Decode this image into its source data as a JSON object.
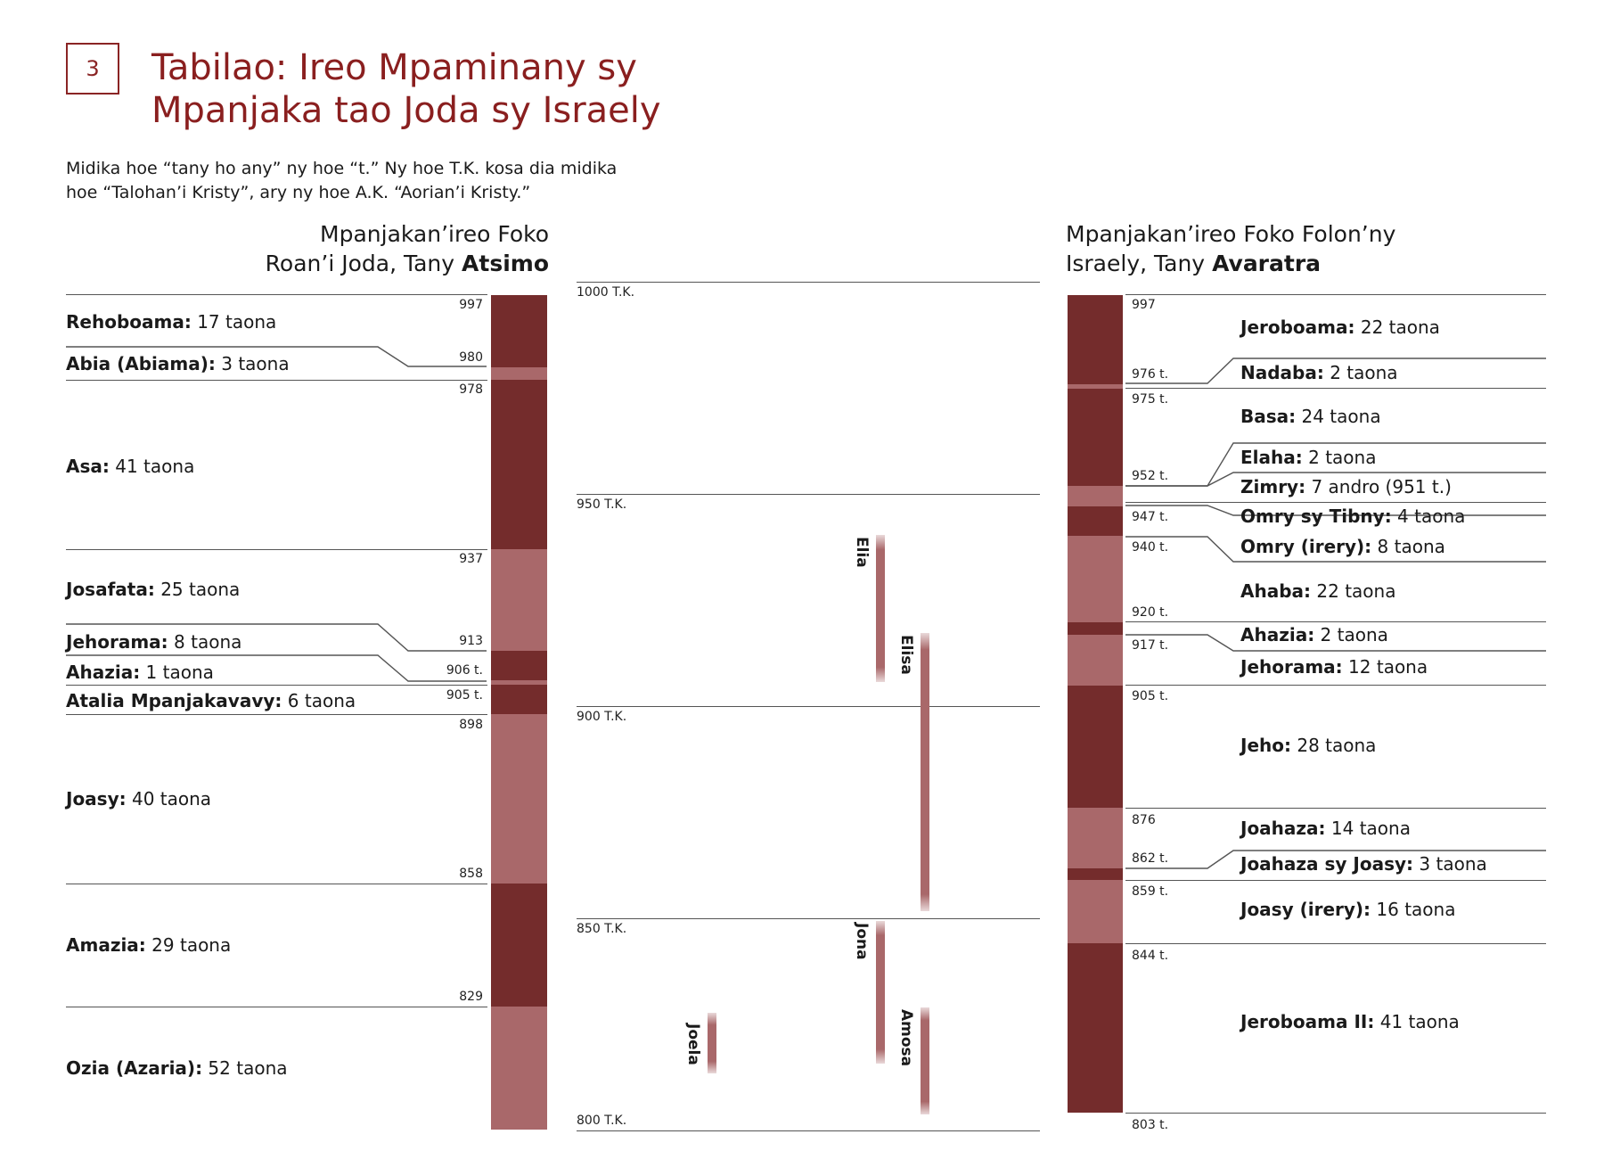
{
  "header": {
    "badge": "3",
    "title_line1": "Tabilao: Ireo Mpaminany sy",
    "title_line2": "Mpanjaka tao Joda sy Israely",
    "note_line1": "Midika hoe “tany ho any” ny hoe “t.” Ny hoe T.K. kosa dia midika",
    "note_line2": "hoe “Talohan’i Kristy”, ary ny hoe A.K. “Aorian’i Kristy.”"
  },
  "colors": {
    "dark": "#742c2c",
    "light": "#a9686a",
    "accent": "#8a1f1f"
  },
  "south": {
    "heading_line1": "Mpanjakan’ireo Foko",
    "heading_line2_plain": "Roan’i Joda, Tany ",
    "heading_line2_bold": "Atsimo",
    "years": [
      "997",
      "980",
      "978",
      "937",
      "913",
      "906 t.",
      "905 t.",
      "898",
      "858",
      "829"
    ],
    "kings": [
      {
        "name": "Rehoboama:",
        "reign": " 17 taona"
      },
      {
        "name": "Abia (Abiama):",
        "reign": " 3 taona"
      },
      {
        "name": "Asa:",
        "reign": " 41 taona"
      },
      {
        "name": "Josafata:",
        "reign": " 25 taona"
      },
      {
        "name": "Jehorama:",
        "reign": " 8 taona"
      },
      {
        "name": "Ahazia:",
        "reign": " 1 taona"
      },
      {
        "name": "Atalia Mpanjakavavy:",
        "reign": " 6 taona"
      },
      {
        "name": "Joasy:",
        "reign": " 40 taona"
      },
      {
        "name": "Amazia:",
        "reign": " 29 taona"
      },
      {
        "name": "Ozia (Azaria):",
        "reign": " 52 taona"
      }
    ]
  },
  "timeline": {
    "labels": [
      "1000 T.K.",
      "950 T.K.",
      "900 T.K.",
      "850 T.K.",
      "800 T.K."
    ],
    "prophets": [
      {
        "name": "Elia"
      },
      {
        "name": "Elisa"
      },
      {
        "name": "Jona"
      },
      {
        "name": "Amosa"
      },
      {
        "name": "Joela"
      }
    ]
  },
  "north": {
    "heading_line1": "Mpanjakan’ireo Foko Folon’ny",
    "heading_line2_plain": "Israely, Tany ",
    "heading_line2_bold": "Avaratra",
    "years": [
      "997",
      "976 t.",
      "975 t.",
      "952 t.",
      "947 t.",
      "940 t.",
      "920 t.",
      "917 t.",
      "905 t.",
      "876",
      "862 t.",
      "859 t.",
      "844 t.",
      "803 t."
    ],
    "kings": [
      {
        "name": "Jeroboama:",
        "reign": " 22 taona"
      },
      {
        "name": "Nadaba:",
        "reign": " 2 taona"
      },
      {
        "name": "Basa:",
        "reign": " 24 taona"
      },
      {
        "name": "Elaha:",
        "reign": " 2 taona"
      },
      {
        "name": "Zimry:",
        "reign": " 7 andro (951 t.)"
      },
      {
        "name": "Omry sy Tibny:",
        "reign": " 4 taona"
      },
      {
        "name": "Omry (irery):",
        "reign": " 8 taona"
      },
      {
        "name": "Ahaba:",
        "reign": " 22 taona"
      },
      {
        "name": "Ahazia:",
        "reign": " 2 taona"
      },
      {
        "name": "Jehorama:",
        "reign": " 12 taona"
      },
      {
        "name": "Jeho:",
        "reign": " 28 taona"
      },
      {
        "name": "Joahaza:",
        "reign": " 14 taona"
      },
      {
        "name": "Joahaza sy Joasy:",
        "reign": " 3 taona"
      },
      {
        "name": "Joasy (irery):",
        "reign": " 16 taona"
      },
      {
        "name": "Jeroboama II:",
        "reign": " 41 taona"
      }
    ]
  }
}
